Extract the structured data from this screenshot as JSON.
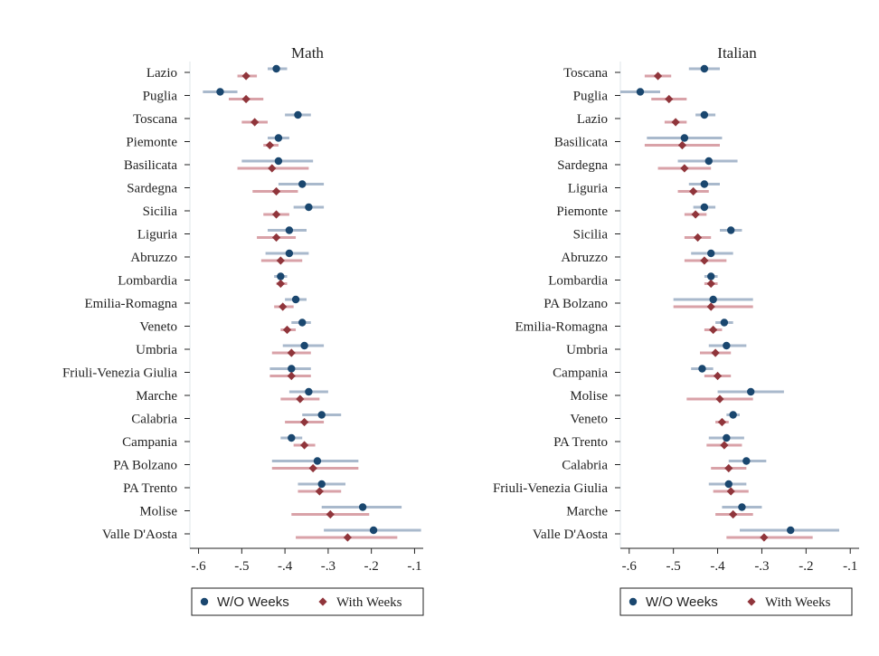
{
  "colors": {
    "wo_point": "#1a476f",
    "wo_ci": "#a9b9cc",
    "with_point": "#90353b",
    "with_ci": "#d9a2a8",
    "axis": "#222222",
    "frame": "#dfe5ea"
  },
  "chart_data": [
    {
      "type": "scatter",
      "title": "Math",
      "xlim": [
        -0.62,
        -0.08
      ],
      "xticks": [
        -0.6,
        -0.5,
        -0.4,
        -0.3,
        -0.2,
        -0.1
      ],
      "xtick_labels": [
        "-.6",
        "-.5",
        "-.4",
        "-.3",
        "-.2",
        "-.1"
      ],
      "xlabel": "",
      "ylabel": "",
      "grid": false,
      "legend": "bottom",
      "categories": [
        "Lazio",
        "Puglia",
        "Toscana",
        "Piemonte",
        "Basilicata",
        "Sardegna",
        "Sicilia",
        "Liguria",
        "Abruzzo",
        "Lombardia",
        "Emilia-Romagna",
        "Veneto",
        "Umbria",
        "Friuli-Venezia Giulia",
        "Marche",
        "Calabria",
        "Campania",
        "PA Bolzano",
        "PA Trento",
        "Molise",
        "Valle D'Aosta"
      ],
      "series": [
        {
          "name": "W/O Weeks",
          "marker": "circle",
          "values": [
            -0.42,
            -0.55,
            -0.37,
            -0.415,
            -0.415,
            -0.36,
            -0.345,
            -0.39,
            -0.39,
            -0.41,
            -0.375,
            -0.36,
            -0.355,
            -0.385,
            -0.345,
            -0.315,
            -0.385,
            -0.325,
            -0.315,
            -0.22,
            -0.195
          ],
          "ci_low": [
            -0.44,
            -0.59,
            -0.4,
            -0.44,
            -0.5,
            -0.415,
            -0.38,
            -0.44,
            -0.445,
            -0.425,
            -0.4,
            -0.385,
            -0.405,
            -0.435,
            -0.39,
            -0.36,
            -0.41,
            -0.43,
            -0.37,
            -0.315,
            -0.31
          ],
          "ci_high": [
            -0.395,
            -0.51,
            -0.34,
            -0.39,
            -0.335,
            -0.31,
            -0.31,
            -0.35,
            -0.345,
            -0.395,
            -0.35,
            -0.34,
            -0.31,
            -0.34,
            -0.3,
            -0.27,
            -0.36,
            -0.23,
            -0.26,
            -0.13,
            -0.085
          ]
        },
        {
          "name": "With Weeks",
          "marker": "diamond",
          "values": [
            -0.49,
            -0.49,
            -0.47,
            -0.435,
            -0.43,
            -0.42,
            -0.42,
            -0.42,
            -0.41,
            -0.41,
            -0.405,
            -0.395,
            -0.385,
            -0.385,
            -0.365,
            -0.355,
            -0.355,
            -0.335,
            -0.32,
            -0.295,
            -0.255
          ],
          "ci_low": [
            -0.51,
            -0.53,
            -0.5,
            -0.45,
            -0.51,
            -0.475,
            -0.45,
            -0.465,
            -0.455,
            -0.42,
            -0.425,
            -0.41,
            -0.43,
            -0.435,
            -0.41,
            -0.4,
            -0.38,
            -0.43,
            -0.37,
            -0.385,
            -0.375
          ],
          "ci_high": [
            -0.465,
            -0.45,
            -0.44,
            -0.415,
            -0.345,
            -0.37,
            -0.39,
            -0.375,
            -0.36,
            -0.395,
            -0.38,
            -0.375,
            -0.34,
            -0.34,
            -0.32,
            -0.31,
            -0.33,
            -0.23,
            -0.27,
            -0.205,
            -0.14
          ]
        }
      ]
    },
    {
      "type": "scatter",
      "title": "Italian",
      "xlim": [
        -0.62,
        -0.08
      ],
      "xticks": [
        -0.6,
        -0.5,
        -0.4,
        -0.3,
        -0.2,
        -0.1
      ],
      "xtick_labels": [
        "-.6",
        "-.5",
        "-.4",
        "-.3",
        "-.2",
        "-.1"
      ],
      "xlabel": "",
      "ylabel": "",
      "grid": false,
      "legend": "bottom",
      "categories": [
        "Toscana",
        "Puglia",
        "Lazio",
        "Basilicata",
        "Sardegna",
        "Liguria",
        "Piemonte",
        "Sicilia",
        "Abruzzo",
        "Lombardia",
        "PA Bolzano",
        "Emilia-Romagna",
        "Umbria",
        "Campania",
        "Molise",
        "Veneto",
        "PA Trento",
        "Calabria",
        "Friuli-Venezia Giulia",
        "Marche",
        "Valle D'Aosta"
      ],
      "series": [
        {
          "name": "W/O Weeks",
          "marker": "circle",
          "values": [
            -0.43,
            -0.575,
            -0.43,
            -0.475,
            -0.42,
            -0.43,
            -0.43,
            -0.37,
            -0.415,
            -0.415,
            -0.41,
            -0.385,
            -0.38,
            -0.435,
            -0.325,
            -0.365,
            -0.38,
            -0.335,
            -0.375,
            -0.345,
            -0.235
          ],
          "ci_low": [
            -0.465,
            -0.62,
            -0.45,
            -0.56,
            -0.49,
            -0.465,
            -0.455,
            -0.395,
            -0.46,
            -0.43,
            -0.5,
            -0.405,
            -0.42,
            -0.46,
            -0.4,
            -0.38,
            -0.42,
            -0.375,
            -0.42,
            -0.39,
            -0.35
          ],
          "ci_high": [
            -0.395,
            -0.53,
            -0.405,
            -0.39,
            -0.355,
            -0.395,
            -0.405,
            -0.345,
            -0.365,
            -0.4,
            -0.32,
            -0.365,
            -0.335,
            -0.41,
            -0.25,
            -0.35,
            -0.34,
            -0.29,
            -0.335,
            -0.3,
            -0.125
          ]
        },
        {
          "name": "With Weeks",
          "marker": "diamond",
          "values": [
            -0.535,
            -0.51,
            -0.495,
            -0.48,
            -0.475,
            -0.455,
            -0.45,
            -0.445,
            -0.43,
            -0.415,
            -0.415,
            -0.41,
            -0.405,
            -0.4,
            -0.395,
            -0.39,
            -0.385,
            -0.375,
            -0.37,
            -0.365,
            -0.295
          ],
          "ci_low": [
            -0.565,
            -0.55,
            -0.52,
            -0.565,
            -0.535,
            -0.49,
            -0.475,
            -0.475,
            -0.475,
            -0.43,
            -0.5,
            -0.43,
            -0.44,
            -0.43,
            -0.47,
            -0.405,
            -0.425,
            -0.415,
            -0.41,
            -0.405,
            -0.38
          ],
          "ci_high": [
            -0.505,
            -0.47,
            -0.47,
            -0.395,
            -0.415,
            -0.42,
            -0.425,
            -0.415,
            -0.38,
            -0.4,
            -0.32,
            -0.39,
            -0.37,
            -0.37,
            -0.32,
            -0.375,
            -0.345,
            -0.335,
            -0.33,
            -0.32,
            -0.185
          ]
        }
      ]
    }
  ]
}
